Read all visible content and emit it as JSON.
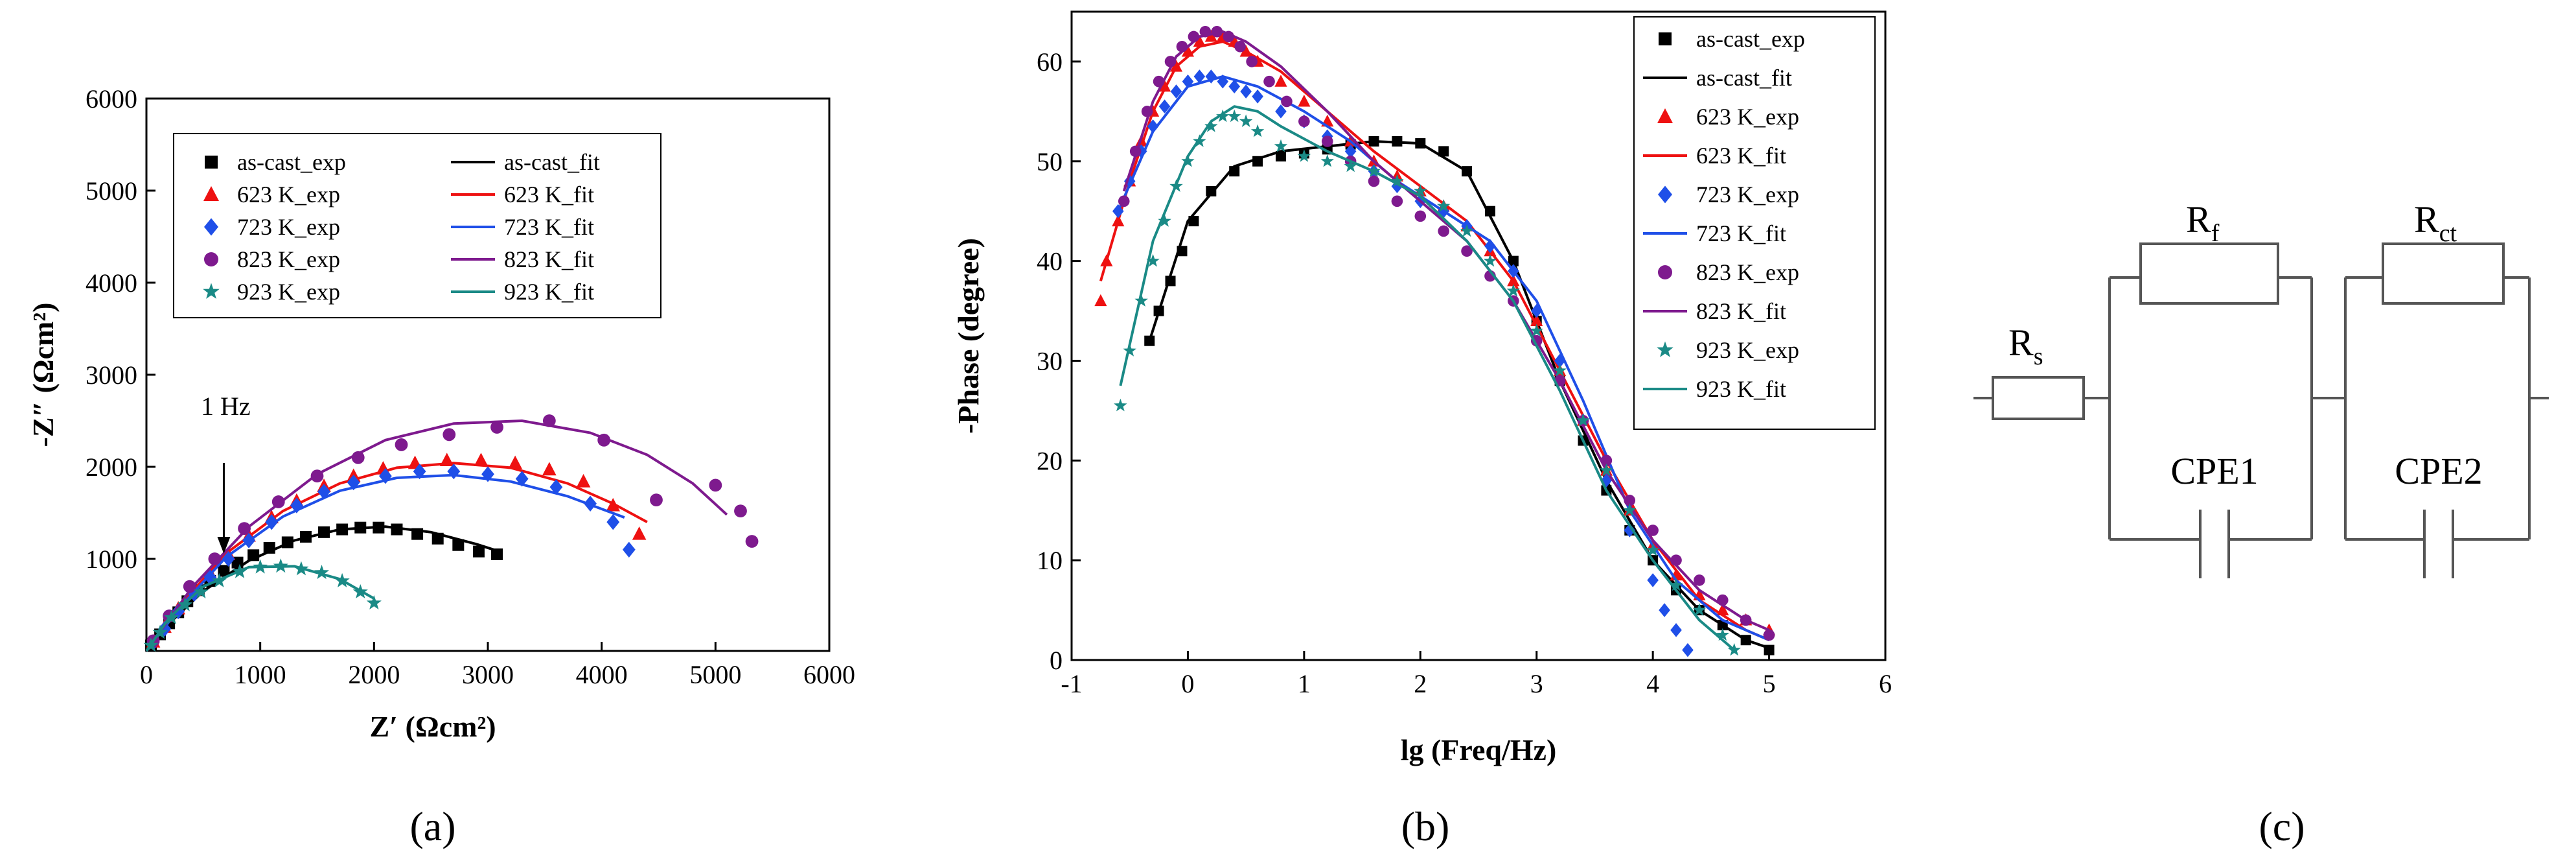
{
  "panels": {
    "a": "(a)",
    "b": "(b)",
    "c": "(c)"
  },
  "legend_labels": [
    "as-cast_exp",
    "as-cast_fit",
    "623 K_exp",
    "623 K_fit",
    "723 K_exp",
    "723 K_fit",
    "823 K_exp",
    "823 K_fit",
    "923 K_exp",
    "923 K_fit"
  ],
  "colors": {
    "as-cast": "#000000",
    "623": "#ee1111",
    "723": "#1f4fe8",
    "823": "#7e1a8e",
    "923": "#1a8a86"
  },
  "chart_data": [
    {
      "type": "scatter",
      "title": "",
      "xlabel": "Z′ (Ωcm²)",
      "ylabel": "-Z″ (Ωcm²)",
      "xlim": [
        0,
        6000
      ],
      "ylim": [
        0,
        6000
      ],
      "xticks": [
        0,
        1000,
        2000,
        3000,
        4000,
        5000,
        6000
      ],
      "yticks": [
        1000,
        2000,
        3000,
        4000,
        5000,
        6000
      ],
      "annotation": "1 Hz",
      "annotation_point": [
        680,
        1000
      ],
      "series": [
        {
          "name": "as-cast_exp",
          "key": "as-cast",
          "marker": "square",
          "x": [
            40,
            120,
            200,
            280,
            360,
            460,
            560,
            680,
            800,
            940,
            1080,
            1240,
            1400,
            1560,
            1720,
            1880,
            2040,
            2200,
            2380,
            2560,
            2740,
            2920,
            3080
          ],
          "y": [
            60,
            180,
            300,
            420,
            540,
            660,
            760,
            870,
            960,
            1040,
            1120,
            1180,
            1240,
            1290,
            1320,
            1340,
            1340,
            1320,
            1270,
            1220,
            1150,
            1080,
            1050
          ]
        },
        {
          "name": "as-cast_fit",
          "key": "as-cast",
          "kind": "line",
          "x": [
            0,
            200,
            500,
            900,
            1300,
            1700,
            2100,
            2500,
            2900,
            3100
          ],
          "y": [
            0,
            300,
            650,
            980,
            1200,
            1320,
            1350,
            1290,
            1160,
            1080
          ]
        },
        {
          "name": "623 K_exp",
          "key": "623",
          "marker": "triangle",
          "x": [
            60,
            160,
            280,
            420,
            560,
            720,
            900,
            1100,
            1320,
            1560,
            1820,
            2080,
            2360,
            2640,
            2940,
            3240,
            3540,
            3840,
            4100,
            4330
          ],
          "y": [
            100,
            260,
            460,
            660,
            840,
            1050,
            1250,
            1450,
            1630,
            1790,
            1900,
            1980,
            2040,
            2070,
            2070,
            2040,
            1970,
            1840,
            1580,
            1270
          ]
        },
        {
          "name": "623 K_fit",
          "key": "623",
          "kind": "line",
          "x": [
            0,
            300,
            700,
            1200,
            1700,
            2200,
            2700,
            3200,
            3700,
            4100,
            4400
          ],
          "y": [
            0,
            500,
            1060,
            1520,
            1820,
            1990,
            2040,
            1990,
            1820,
            1600,
            1400
          ]
        },
        {
          "name": "723 K_exp",
          "key": "723",
          "marker": "diamond",
          "x": [
            60,
            160,
            280,
            420,
            560,
            720,
            900,
            1100,
            1320,
            1560,
            1820,
            2100,
            2400,
            2700,
            3000,
            3300,
            3600,
            3900,
            4100,
            4240
          ],
          "y": [
            90,
            240,
            430,
            620,
            800,
            1000,
            1200,
            1400,
            1580,
            1730,
            1830,
            1900,
            1950,
            1950,
            1920,
            1870,
            1780,
            1600,
            1400,
            1100
          ]
        },
        {
          "name": "723 K_fit",
          "key": "723",
          "kind": "line",
          "x": [
            0,
            300,
            700,
            1200,
            1700,
            2200,
            2700,
            3200,
            3700,
            4200
          ],
          "y": [
            0,
            480,
            1020,
            1460,
            1740,
            1880,
            1910,
            1840,
            1680,
            1450
          ]
        },
        {
          "name": "823 K_exp",
          "key": "823",
          "marker": "circle",
          "x": [
            60,
            200,
            380,
            600,
            860,
            1160,
            1500,
            1860,
            2240,
            2660,
            3080,
            3540,
            4020,
            4480,
            5000,
            5220,
            5320
          ],
          "y": [
            110,
            380,
            700,
            1000,
            1330,
            1620,
            1900,
            2100,
            2240,
            2350,
            2430,
            2500,
            2290,
            1640,
            1800,
            1520,
            1190
          ]
        },
        {
          "name": "823 K_fit",
          "key": "823",
          "kind": "line",
          "x": [
            0,
            400,
            900,
            1500,
            2100,
            2700,
            3300,
            3900,
            4400,
            4800,
            5100
          ],
          "y": [
            0,
            690,
            1350,
            1920,
            2290,
            2470,
            2500,
            2370,
            2130,
            1820,
            1480
          ]
        },
        {
          "name": "923 K_exp",
          "key": "923",
          "marker": "star",
          "x": [
            40,
            120,
            220,
            340,
            480,
            640,
            820,
            1000,
            1180,
            1360,
            1540,
            1720,
            1880,
            2000
          ],
          "y": [
            60,
            200,
            360,
            500,
            640,
            760,
            860,
            910,
            920,
            890,
            850,
            760,
            640,
            520
          ]
        },
        {
          "name": "923 K_fit",
          "key": "923",
          "kind": "line",
          "x": [
            0,
            200,
            500,
            900,
            1300,
            1700,
            2000
          ],
          "y": [
            0,
            360,
            700,
            910,
            920,
            780,
            570
          ]
        }
      ]
    },
    {
      "type": "scatter",
      "title": "",
      "xlabel": "lg (Freq/Hz)",
      "ylabel": "-Phase (degree)",
      "xlim": [
        -1,
        6
      ],
      "ylim": [
        0,
        65
      ],
      "xticks": [
        -1,
        0,
        1,
        2,
        3,
        4,
        5,
        6
      ],
      "yticks": [
        0,
        10,
        20,
        30,
        40,
        50,
        60
      ],
      "series": [
        {
          "name": "as-cast_exp",
          "key": "as-cast",
          "marker": "square",
          "x": [
            -0.33,
            -0.25,
            -0.15,
            -0.05,
            0.05,
            0.2,
            0.4,
            0.6,
            0.8,
            1.0,
            1.2,
            1.4,
            1.6,
            1.8,
            2.0,
            2.2,
            2.4,
            2.6,
            2.8,
            3.0,
            3.2,
            3.4,
            3.6,
            3.8,
            4.0,
            4.2,
            4.4,
            4.6,
            4.8,
            5.0
          ],
          "y": [
            32,
            35,
            38,
            41,
            44,
            47,
            49,
            50,
            50.5,
            50.8,
            51.2,
            51.7,
            52,
            52,
            51.8,
            51,
            49,
            45,
            40,
            34,
            28,
            22,
            17,
            13,
            10,
            7,
            5,
            3.5,
            2,
            1
          ]
        },
        {
          "name": "as-cast_fit",
          "key": "as-cast",
          "kind": "line",
          "x": [
            -0.33,
            0,
            0.4,
            0.8,
            1.2,
            1.6,
            2.0,
            2.4,
            2.8,
            3.2,
            3.6,
            4.0,
            4.4,
            4.8,
            5.0
          ],
          "y": [
            32,
            44,
            49.5,
            51,
            51.5,
            52,
            51.8,
            49,
            40,
            28,
            18,
            10,
            5,
            2,
            1.2
          ]
        },
        {
          "name": "623 K_exp",
          "key": "623",
          "marker": "triangle",
          "x": [
            -0.75,
            -0.7,
            -0.6,
            -0.5,
            -0.4,
            -0.3,
            -0.2,
            -0.1,
            0.0,
            0.1,
            0.2,
            0.3,
            0.4,
            0.5,
            0.6,
            0.8,
            1.0,
            1.2,
            1.4,
            1.6,
            1.8,
            2.0,
            2.2,
            2.4,
            2.6,
            2.8,
            3.0,
            3.2,
            3.4,
            3.6,
            3.8,
            4.0,
            4.2,
            4.4,
            4.6,
            4.8,
            5.0
          ],
          "y": [
            36,
            40,
            44,
            48,
            52,
            55,
            57.5,
            59.5,
            61,
            62,
            62.5,
            62.5,
            62,
            61,
            60,
            58,
            56,
            54,
            52,
            50,
            48.5,
            47,
            45.5,
            43.5,
            41,
            38,
            34,
            29,
            24,
            19,
            15,
            11.5,
            8.5,
            6.5,
            5,
            4,
            3
          ]
        },
        {
          "name": "623 K_fit",
          "key": "623",
          "kind": "line",
          "x": [
            -0.75,
            -0.5,
            -0.3,
            -0.1,
            0.1,
            0.3,
            0.5,
            0.8,
            1.2,
            1.6,
            2.0,
            2.4,
            2.8,
            3.2,
            3.6,
            4.0,
            4.4,
            4.8,
            5.0
          ],
          "y": [
            38,
            48,
            55,
            59.5,
            61.5,
            62,
            61,
            59,
            55,
            51,
            47.5,
            44,
            38,
            29,
            20,
            12,
            6,
            3,
            2
          ]
        },
        {
          "name": "723 K_exp",
          "key": "723",
          "marker": "diamond",
          "x": [
            -0.6,
            -0.5,
            -0.4,
            -0.3,
            -0.2,
            -0.1,
            0.0,
            0.1,
            0.2,
            0.3,
            0.4,
            0.5,
            0.6,
            0.8,
            1.0,
            1.2,
            1.4,
            1.6,
            1.8,
            2.0,
            2.2,
            2.4,
            2.6,
            2.8,
            3.0,
            3.2,
            3.4,
            3.6,
            3.8,
            4.0,
            4.1,
            4.2,
            4.3
          ],
          "y": [
            45,
            48,
            51,
            53.5,
            55.5,
            57,
            58,
            58.5,
            58.5,
            58,
            57.5,
            57,
            56.5,
            55,
            54,
            52.5,
            51,
            49,
            47.5,
            46,
            45,
            43.5,
            41.5,
            39,
            35,
            30,
            24,
            18,
            13,
            8,
            5,
            3,
            1
          ]
        },
        {
          "name": "723 K_fit",
          "key": "723",
          "kind": "line",
          "x": [
            -0.6,
            -0.3,
            0,
            0.3,
            0.6,
            1.0,
            1.4,
            1.8,
            2.2,
            2.6,
            3.0,
            3.4,
            3.8,
            4.2,
            4.6,
            5.0
          ],
          "y": [
            45,
            53,
            57.5,
            58.5,
            57.5,
            55,
            52,
            48,
            45,
            42,
            36,
            26,
            15,
            8,
            4,
            2
          ]
        },
        {
          "name": "823 K_exp",
          "key": "823",
          "marker": "circle",
          "x": [
            -0.55,
            -0.45,
            -0.35,
            -0.25,
            -0.15,
            -0.05,
            0.05,
            0.15,
            0.25,
            0.35,
            0.45,
            0.55,
            0.7,
            0.85,
            1.0,
            1.2,
            1.4,
            1.6,
            1.8,
            2.0,
            2.2,
            2.4,
            2.6,
            2.8,
            3.0,
            3.2,
            3.4,
            3.6,
            3.8,
            4.0,
            4.2,
            4.4,
            4.6,
            4.8,
            5.0
          ],
          "y": [
            46,
            51,
            55,
            58,
            60,
            61.5,
            62.5,
            63,
            63,
            62.5,
            61.5,
            60,
            58,
            56,
            54,
            52,
            50,
            48,
            46,
            44.5,
            43,
            41,
            38.5,
            36,
            32,
            28,
            24,
            20,
            16,
            13,
            10,
            8,
            6,
            4,
            2.5
          ]
        },
        {
          "name": "823 K_fit",
          "key": "823",
          "kind": "line",
          "x": [
            -0.55,
            -0.3,
            -0.1,
            0.1,
            0.3,
            0.5,
            0.8,
            1.2,
            1.6,
            2.0,
            2.4,
            2.8,
            3.2,
            3.6,
            4.0,
            4.4,
            4.8,
            5.0
          ],
          "y": [
            47,
            56,
            60.5,
            62.5,
            63,
            62,
            59.5,
            55,
            50,
            46,
            42,
            36,
            28,
            19,
            12,
            7,
            4,
            3
          ]
        },
        {
          "name": "923 K_exp",
          "key": "923",
          "marker": "star",
          "x": [
            -0.58,
            -0.5,
            -0.4,
            -0.3,
            -0.2,
            -0.1,
            0.0,
            0.1,
            0.2,
            0.3,
            0.4,
            0.5,
            0.6,
            0.8,
            1.0,
            1.2,
            1.4,
            1.6,
            1.8,
            2.0,
            2.2,
            2.4,
            2.6,
            2.8,
            3.0,
            3.2,
            3.4,
            3.6,
            3.8,
            4.0,
            4.2,
            4.4,
            4.6,
            4.7
          ],
          "y": [
            25.5,
            31,
            36,
            40,
            44,
            47.5,
            50,
            52,
            53.5,
            54.5,
            54.5,
            54,
            53,
            51.5,
            50.5,
            50,
            49.5,
            49,
            48,
            47,
            45.5,
            43,
            40,
            37,
            33,
            29,
            24,
            19,
            15,
            11,
            7.5,
            5,
            2.5,
            1
          ]
        },
        {
          "name": "923 K_fit",
          "key": "923",
          "kind": "line",
          "x": [
            -0.58,
            -0.3,
            0,
            0.2,
            0.4,
            0.6,
            0.8,
            1.2,
            1.6,
            2.0,
            2.4,
            2.8,
            3.2,
            3.6,
            4.0,
            4.4,
            4.7
          ],
          "y": [
            27.5,
            42,
            50.5,
            54,
            55.5,
            55,
            53.5,
            51,
            49,
            46.5,
            42,
            36,
            27,
            17,
            10,
            4,
            1
          ]
        }
      ]
    }
  ],
  "circuit": {
    "type": "diagram",
    "labels": {
      "rs": "R",
      "rs_sub": "s",
      "rf": "R",
      "rf_sub": "f",
      "rct": "R",
      "rct_sub": "ct",
      "cpe1": "CPE1",
      "cpe2": "CPE2"
    }
  }
}
